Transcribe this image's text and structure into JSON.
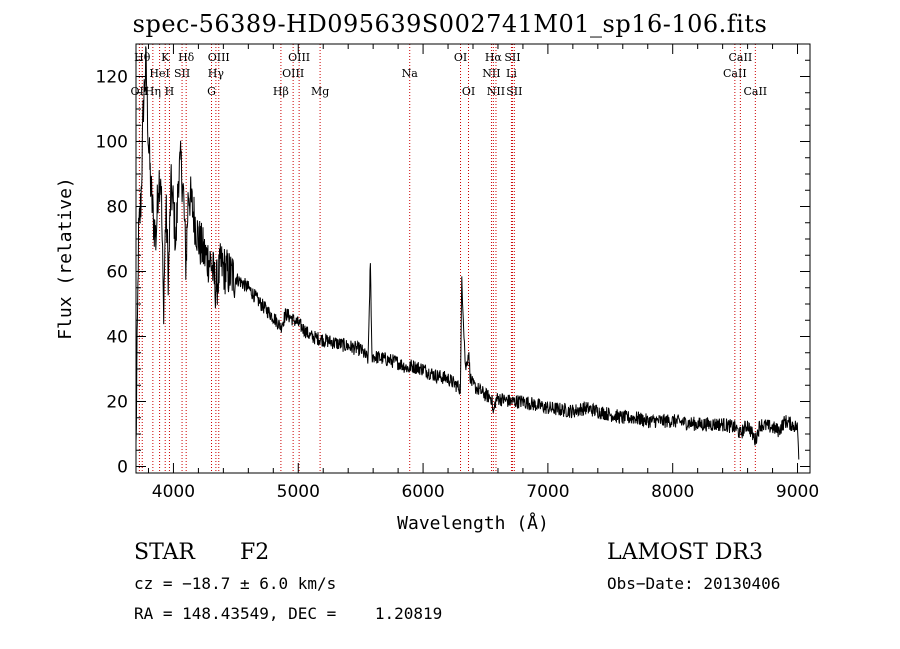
{
  "chart_data": {
    "type": "line",
    "title": "spec-56389-HD095639S002741M01_sp16-106.fits",
    "xlabel": "Wavelength (Å)",
    "ylabel": "Flux (relative)",
    "xlim": [
      3700,
      9100
    ],
    "ylim": [
      -2,
      130
    ],
    "xticks": [
      4000,
      5000,
      6000,
      7000,
      8000,
      9000
    ],
    "yticks": [
      0,
      20,
      40,
      60,
      80,
      100,
      120
    ],
    "series": [
      {
        "name": "spectrum",
        "x": [
          3700,
          3720,
          3740,
          3760,
          3780,
          3800,
          3820,
          3840,
          3860,
          3880,
          3900,
          3920,
          3940,
          3960,
          3980,
          4000,
          4020,
          4040,
          4060,
          4080,
          4100,
          4120,
          4150,
          4200,
          4250,
          4300,
          4340,
          4380,
          4420,
          4500,
          4600,
          4700,
          4800,
          4861,
          4900,
          5000,
          5100,
          5200,
          5300,
          5400,
          5500,
          5560,
          5577,
          5590,
          5700,
          5800,
          5890,
          5900,
          6000,
          6100,
          6200,
          6300,
          6310,
          6340,
          6364,
          6380,
          6400,
          6500,
          6550,
          6563,
          6580,
          6600,
          6700,
          6800,
          6900,
          7000,
          7200,
          7300,
          7600,
          7700,
          7800,
          8000,
          8200,
          8400,
          8500,
          8542,
          8600,
          8662,
          8700,
          8800,
          8850,
          8900,
          8950,
          9000,
          9010
        ],
        "y": [
          5,
          70,
          82,
          112,
          124,
          100,
          85,
          76,
          70,
          88,
          90,
          48,
          80,
          58,
          86,
          80,
          68,
          90,
          93,
          84,
          62,
          85,
          80,
          70,
          65,
          63,
          55,
          62,
          60,
          58,
          55,
          50,
          46,
          43,
          47,
          44,
          40,
          39,
          38,
          37,
          36,
          33,
          63,
          34,
          33,
          32,
          30,
          31,
          30,
          28,
          27,
          24,
          58,
          30,
          35,
          27,
          25,
          22,
          21,
          16,
          20,
          21,
          20,
          20,
          19,
          18,
          17,
          18,
          15,
          15,
          14,
          14,
          13,
          13,
          12,
          10,
          13,
          8,
          13,
          12,
          11,
          14,
          13,
          12,
          3
        ],
        "noise": 2.2
      }
    ],
    "line_markers": [
      {
        "label": "Hβ",
        "wavelength": 4861,
        "row": 2
      },
      {
        "label": "OIII",
        "wavelength": 4959,
        "row": 1
      },
      {
        "label": "OIII",
        "wavelength": 5007,
        "row": 0
      },
      {
        "label": "Mg",
        "wavelength": 5175,
        "row": 2
      },
      {
        "label": "Na",
        "wavelength": 5893,
        "row": 1
      },
      {
        "label": "OI",
        "wavelength": 6300,
        "row": 0
      },
      {
        "label": "OI",
        "wavelength": 6364,
        "row": 2
      },
      {
        "label": "Hα",
        "wavelength": 6563,
        "row": 0
      },
      {
        "label": "NII",
        "wavelength": 6548,
        "row": 1
      },
      {
        "label": "NII",
        "wavelength": 6584,
        "row": 2
      },
      {
        "label": "SII",
        "wavelength": 6716,
        "row": 0
      },
      {
        "label": "Li",
        "wavelength": 6708,
        "row": 1
      },
      {
        "label": "SII",
        "wavelength": 6731,
        "row": 2
      },
      {
        "label": "CaII",
        "wavelength": 8498,
        "row": 1
      },
      {
        "label": "CaII",
        "wavelength": 8542,
        "row": 0
      },
      {
        "label": "CaII",
        "wavelength": 8662,
        "row": 2
      },
      {
        "label": "OII",
        "wavelength": 3727,
        "row": 2
      },
      {
        "label": "Hθ",
        "wavelength": 3750,
        "row": 0
      },
      {
        "label": "Hη",
        "wavelength": 3835,
        "row": 2
      },
      {
        "label": "HeI",
        "wavelength": 3889,
        "row": 1
      },
      {
        "label": "K",
        "wavelength": 3934,
        "row": 0
      },
      {
        "label": "H",
        "wavelength": 3968,
        "row": 2
      },
      {
        "label": "SII",
        "wavelength": 4069,
        "row": 1
      },
      {
        "label": "Hδ",
        "wavelength": 4102,
        "row": 0
      },
      {
        "label": "OIII",
        "wavelength": 4363,
        "row": 0
      },
      {
        "label": "Hγ",
        "wavelength": 4340,
        "row": 1
      },
      {
        "label": "G",
        "wavelength": 4305,
        "row": 2
      }
    ],
    "axis_color": "#000000",
    "line_color": "#000000",
    "marker_color": "#cc0000"
  },
  "info": {
    "object_class": "STAR",
    "subclass": "F2",
    "survey": "LAMOST DR3",
    "cz": "cz = −18.7 ± 6.0 km/s",
    "obs_date": "Obs−Date: 20130406",
    "coords": "RA = 148.43549, DEC =    1.20819"
  }
}
